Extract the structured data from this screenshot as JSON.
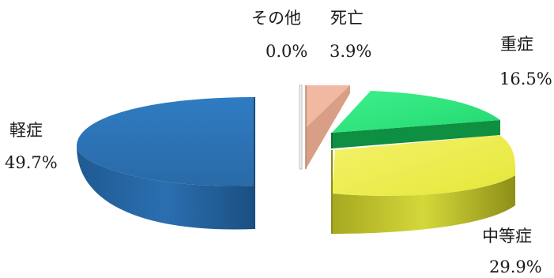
{
  "chart_data": {
    "type": "pie",
    "variant": "3d-exploded",
    "title": "",
    "slices": [
      {
        "name": "軽症",
        "value": 49.7,
        "label": "49.7%",
        "color": "#2e75b6"
      },
      {
        "name": "中等症",
        "value": 29.9,
        "label": "29.9%",
        "color": "#eeee44"
      },
      {
        "name": "重症",
        "value": 16.5,
        "label": "16.5%",
        "color": "#2ee87a"
      },
      {
        "name": "死亡",
        "value": 3.9,
        "label": "3.9%",
        "color": "#f0b8a0"
      },
      {
        "name": "その他",
        "value": 0.0,
        "label": "0.0%",
        "color": "#e8e8e8"
      }
    ]
  }
}
